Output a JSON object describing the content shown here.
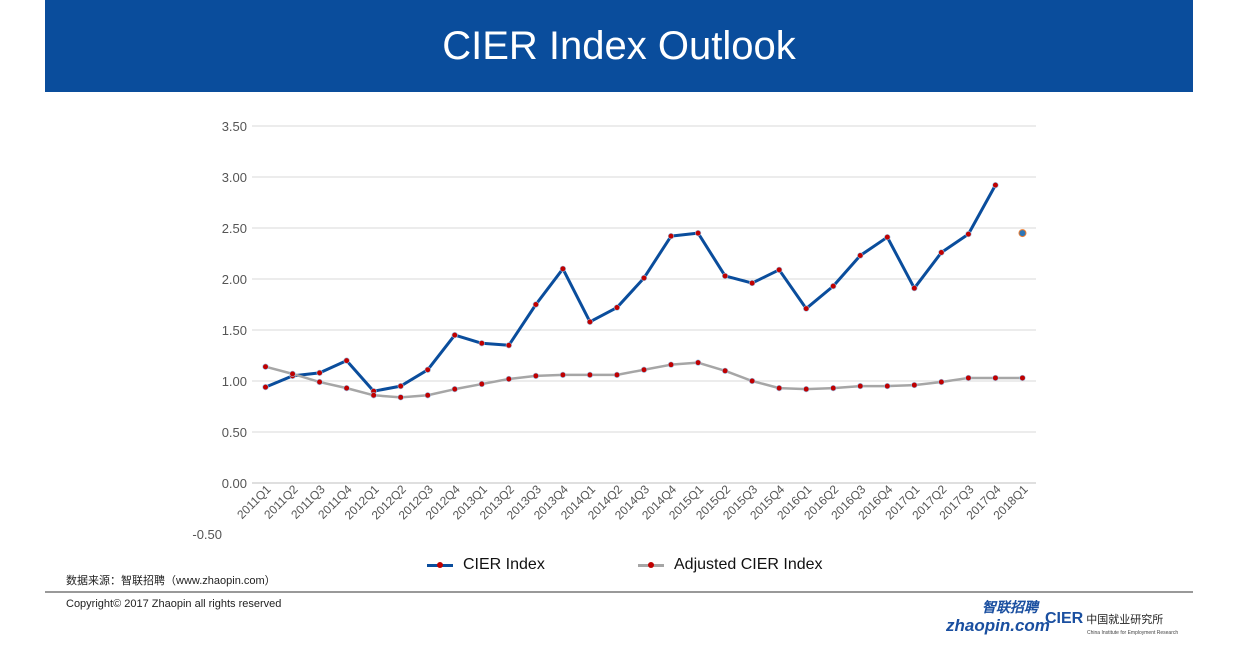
{
  "header": {
    "title": "CIER Index Outlook"
  },
  "footer": {
    "source": "数据来源：智联招聘（www.zhaopin.com）",
    "copyright": "Copyright© 2017 Zhaopin all rights reserved",
    "logo_zhaopin": "zhaopin.com",
    "logo_zhaopin_cn": "智联招聘",
    "logo_cier": "CIER",
    "logo_cier_cn": "中国就业研究所",
    "logo_cier_en": "China Institute for Employment Research"
  },
  "chart_data": {
    "type": "line",
    "title": "",
    "xlabel": "",
    "ylabel": "",
    "ylim": [
      -0.5,
      3.5
    ],
    "yticks": [
      "-0.50",
      "0.00",
      "0.50",
      "1.00",
      "1.50",
      "2.00",
      "2.50",
      "3.00",
      "3.50"
    ],
    "grid": true,
    "legend": "bottom",
    "categories": [
      "2011Q1",
      "2011Q2",
      "2011Q3",
      "2011Q4",
      "2012Q1",
      "2012Q2",
      "2012Q3",
      "2012Q4",
      "2013Q1",
      "2013Q2",
      "2013Q3",
      "2013Q4",
      "2014Q1",
      "2014Q2",
      "2014Q3",
      "2014Q4",
      "2015Q1",
      "2015Q2",
      "2015Q3",
      "2015Q4",
      "2016Q1",
      "2016Q2",
      "2016Q3",
      "2016Q4",
      "2017Q1",
      "2017Q2",
      "2017Q3",
      "2017Q4",
      "2018Q1"
    ],
    "series": [
      {
        "name": "CIER Index",
        "color": "#0a4d9c",
        "marker_color": "#c00000",
        "values": [
          0.94,
          1.05,
          1.08,
          1.2,
          0.9,
          0.95,
          1.11,
          1.45,
          1.37,
          1.35,
          1.75,
          2.1,
          1.58,
          1.72,
          2.01,
          2.42,
          2.45,
          2.03,
          1.96,
          2.09,
          1.71,
          1.93,
          2.23,
          2.41,
          1.91,
          2.26,
          2.44,
          2.92,
          2.45
        ]
      },
      {
        "name": "Adjusted CIER Index",
        "color": "#a6a6a6",
        "marker_color": "#c00000",
        "values": [
          1.14,
          1.07,
          0.99,
          0.93,
          0.86,
          0.84,
          0.86,
          0.92,
          0.97,
          1.02,
          1.05,
          1.06,
          1.06,
          1.06,
          1.11,
          1.16,
          1.18,
          1.1,
          1.0,
          0.93,
          0.92,
          0.93,
          0.95,
          0.95,
          0.96,
          0.99,
          1.03,
          1.03,
          1.03
        ]
      }
    ]
  }
}
